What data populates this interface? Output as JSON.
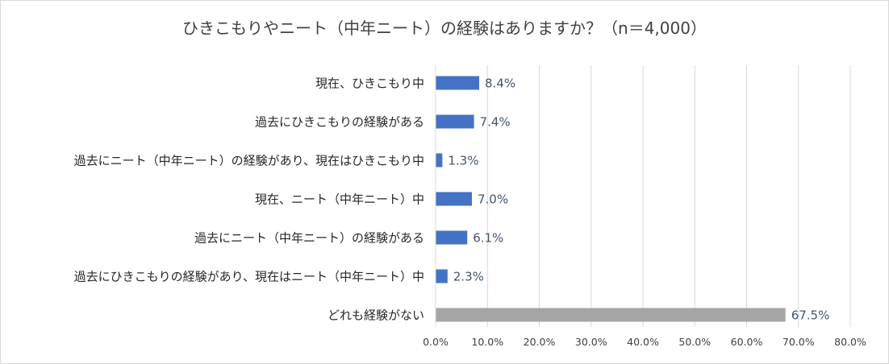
{
  "chart_data": {
    "type": "bar",
    "orientation": "horizontal",
    "title": "ひきこもりやニート（中年ニート）の経験はありますか？（n＝4,000）",
    "categories": [
      "現在、ひきこもり中",
      "過去にひきこもりの経験がある",
      "過去にニート（中年ニート）の経験があり、現在はひきこもり中",
      "現在、ニート（中年ニート）中",
      "過去にニート（中年ニート）の経験がある",
      "過去にひきこもりの経験があり、現在はニート（中年ニート）中",
      "どれも経験がない"
    ],
    "values": [
      8.4,
      7.4,
      1.3,
      7.0,
      6.1,
      2.3,
      67.5
    ],
    "data_labels": [
      "8.4%",
      "7.4%",
      "1.3%",
      "7.0%",
      "6.1%",
      "2.3%",
      "67.5%"
    ],
    "bar_colors": [
      "#4472c4",
      "#4472c4",
      "#4472c4",
      "#4472c4",
      "#4472c4",
      "#4472c4",
      "#a5a5a5"
    ],
    "xlim": [
      0,
      80
    ],
    "ticks": [
      0,
      10,
      20,
      30,
      40,
      50,
      60,
      70,
      80
    ],
    "tick_labels": [
      "0.0%",
      "10.0%",
      "20.0%",
      "30.0%",
      "40.0%",
      "50.0%",
      "60.0%",
      "70.0%",
      "80.0%"
    ],
    "grid": true,
    "legend": "none"
  }
}
